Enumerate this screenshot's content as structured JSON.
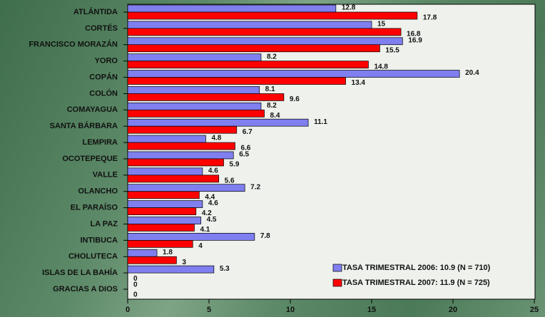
{
  "chart_data": {
    "type": "bar",
    "orientation": "horizontal",
    "categories": [
      "ATLÁNTIDA",
      "CORTÉS",
      "FRANCISCO MORAZÁN",
      "YORO",
      "COPÁN",
      "COLÓN",
      "COMAYAGUA",
      "SANTA BÁRBARA",
      "LEMPIRA",
      "OCOTEPEQUE",
      "VALLE",
      "OLANCHO",
      "EL PARAÍSO",
      "LA PAZ",
      "INTIBUCA",
      "CHOLUTECA",
      "ISLAS DE LA BAHÍA",
      "GRACIAS A DIOS"
    ],
    "series": [
      {
        "name": "TASA TRIMESTRAL 2006: 10.9 (N = 710)",
        "color": "#7f7ff0",
        "values": [
          12.8,
          15,
          16.9,
          8.2,
          20.4,
          8.1,
          8.2,
          11.1,
          4.8,
          6.5,
          4.6,
          7.2,
          4.6,
          4.5,
          7.8,
          1.8,
          5.3,
          0
        ]
      },
      {
        "name": "TASA TRIMESTRAL 2007: 11.9 (N = 725)",
        "color": "#ff0000",
        "values": [
          17.8,
          16.8,
          15.5,
          14.8,
          13.4,
          9.6,
          8.4,
          6.7,
          6.6,
          5.9,
          5.6,
          4.4,
          4.2,
          4.1,
          4,
          3,
          0,
          0
        ]
      }
    ],
    "xlim": [
      0,
      25
    ],
    "xticks": [
      0,
      5,
      10,
      15,
      20,
      25
    ],
    "legend": "lower right"
  }
}
